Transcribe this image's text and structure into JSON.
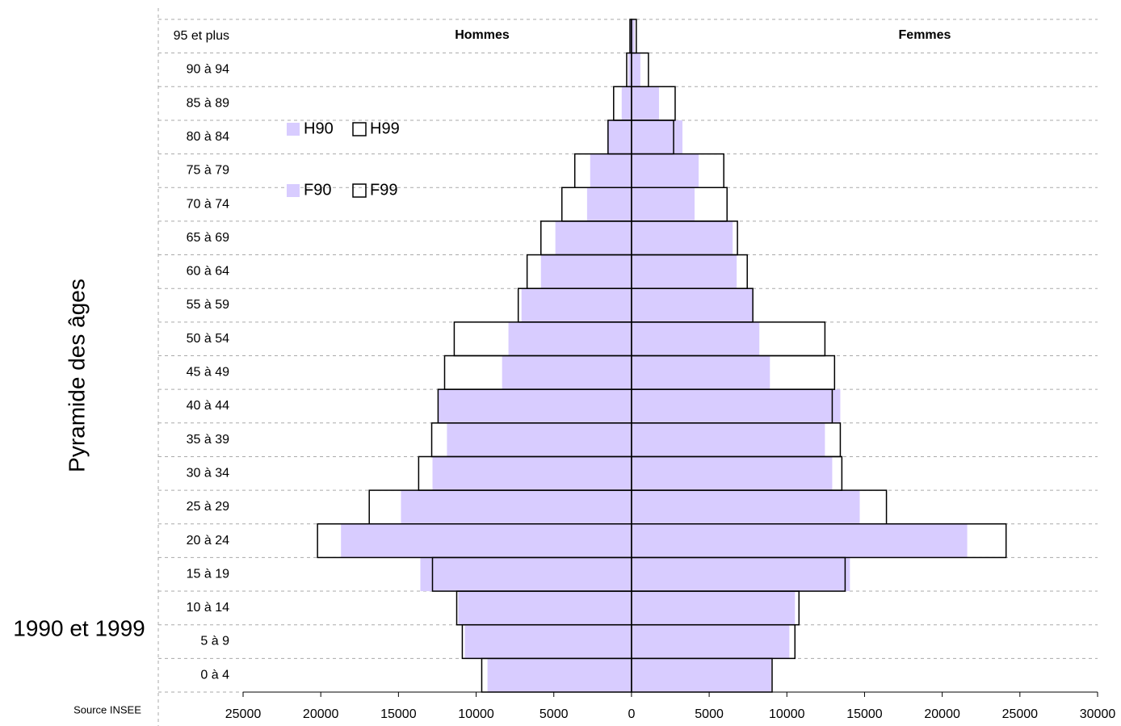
{
  "chart_data": {
    "type": "pyramid",
    "title": "Pyramide des âges",
    "subtitle": "1990 et 1999",
    "source": "Source INSEE",
    "side_labels": [
      "Hommes",
      "Femmes"
    ],
    "categories": [
      "0 à 4",
      "5 à 9",
      "10 à 14",
      "15 à 19",
      "20 à 24",
      "25 à 29",
      "30 à 34",
      "35 à 39",
      "40 à 44",
      "45 à 49",
      "50 à 54",
      "55 à 59",
      "60 à 64",
      "65 à 69",
      "70 à 74",
      "75 à 79",
      "80 à 84",
      "85 à 89",
      "90 à 94",
      "95 et plus"
    ],
    "series": [
      {
        "name": "H90",
        "color": "#d8ccff",
        "style": "filled",
        "values": [
          -9270,
          -10730,
          -11150,
          -13590,
          -18700,
          -14840,
          -12810,
          -11880,
          -12450,
          -8330,
          -7920,
          -7080,
          -5830,
          -4900,
          -2860,
          -2660,
          -1560,
          -630,
          -210,
          -100
        ]
      },
      {
        "name": "H99",
        "color": "#000000",
        "style": "outline",
        "values": [
          -9640,
          -10890,
          -11250,
          -12810,
          -20210,
          -16880,
          -13700,
          -12860,
          -12450,
          -12030,
          -11410,
          -7290,
          -6720,
          -5830,
          -4480,
          -3650,
          -1510,
          -1150,
          -310,
          -100
        ]
      },
      {
        "name": "F90",
        "color": "#d8ccff",
        "style": "filled",
        "values": [
          9000,
          10160,
          10520,
          14060,
          21610,
          14690,
          12920,
          12450,
          13440,
          8910,
          8230,
          7810,
          6770,
          6510,
          4060,
          4320,
          3280,
          1770,
          570,
          210
        ]
      },
      {
        "name": "F99",
        "color": "#000000",
        "style": "outline",
        "values": [
          9050,
          10520,
          10780,
          13750,
          24110,
          16410,
          13540,
          13440,
          12920,
          13070,
          12450,
          7810,
          7450,
          6820,
          6150,
          5940,
          2710,
          2810,
          1090,
          310
        ]
      }
    ],
    "xlim": [
      -25000,
      30000
    ],
    "xticks": [
      {
        "value": -25000,
        "label": "25000"
      },
      {
        "value": -20000,
        "label": "20000"
      },
      {
        "value": -15000,
        "label": "15000"
      },
      {
        "value": -10000,
        "label": "10000"
      },
      {
        "value": -5000,
        "label": "5000"
      },
      0,
      5000,
      10000,
      15000,
      20000,
      25000,
      30000
    ],
    "grid": true
  }
}
